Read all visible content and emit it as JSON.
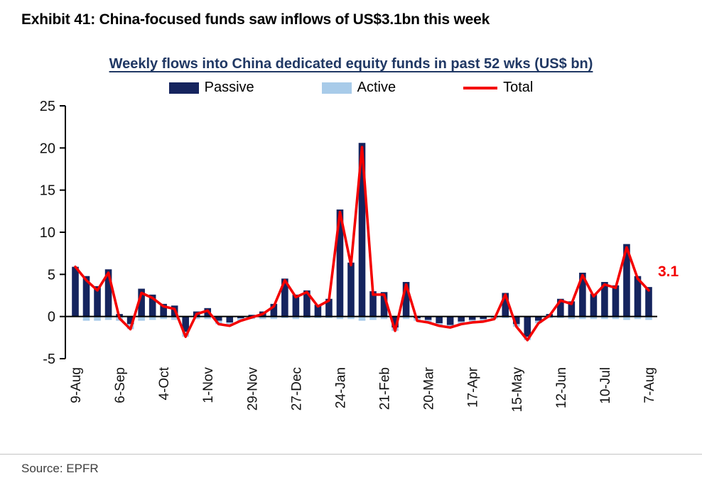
{
  "page": {
    "exhibit_title": "Exhibit 41: China-focused funds saw inflows of US$3.1bn this week",
    "source": "Source: EPFR"
  },
  "chart_data": {
    "type": "bar",
    "title": "Weekly flows into China dedicated equity funds in past 52 wks (US$ bn)",
    "xlabel": "",
    "ylabel": "",
    "ylim": [
      -5,
      25
    ],
    "yticks": [
      25,
      20,
      15,
      10,
      5,
      0,
      -5
    ],
    "grid": false,
    "legend_position": "top",
    "x_tick_labels": [
      "9-Aug",
      "6-Sep",
      "4-Oct",
      "1-Nov",
      "29-Nov",
      "27-Dec",
      "24-Jan",
      "21-Feb",
      "20-Mar",
      "17-Apr",
      "15-May",
      "12-Jun",
      "10-Jul",
      "7-Aug"
    ],
    "x_tick_interval": 4,
    "colors": {
      "passive": "#15245E",
      "active": "#A8CBE9",
      "total": "#F40000",
      "axis": "#000000",
      "title": "#203864"
    },
    "legend": [
      {
        "label": "Passive",
        "type": "bar",
        "color": "#15245E"
      },
      {
        "label": "Active",
        "type": "bar",
        "color": "#A8CBE9"
      },
      {
        "label": "Total",
        "type": "line",
        "color": "#F40000"
      }
    ],
    "series": [
      {
        "name": "Passive",
        "type": "bar",
        "color": "#15245E",
        "values": [
          5.9,
          4.8,
          3.6,
          5.6,
          0.3,
          -0.9,
          3.3,
          2.6,
          1.5,
          1.3,
          -1.8,
          0.6,
          1.0,
          -0.5,
          -0.7,
          -0.2,
          0.2,
          0.6,
          1.5,
          4.5,
          2.6,
          3.1,
          1.4,
          2.1,
          12.7,
          6.4,
          20.6,
          3.0,
          2.9,
          -1.3,
          4.1,
          -0.2,
          -0.4,
          -0.8,
          -1.0,
          -0.6,
          -0.4,
          -0.3,
          -0.1,
          2.8,
          -0.9,
          -2.4,
          -0.5,
          0.3,
          2.1,
          1.8,
          5.2,
          2.7,
          4.1,
          3.7,
          8.6,
          4.8,
          3.5
        ]
      },
      {
        "name": "Active",
        "type": "bar",
        "color": "#A8CBE9",
        "values": [
          0.0,
          -0.5,
          -0.5,
          -0.4,
          -0.5,
          -0.6,
          -0.5,
          -0.4,
          -0.3,
          -0.4,
          -0.6,
          -0.3,
          -0.3,
          -0.4,
          -0.4,
          -0.3,
          -0.3,
          -0.3,
          -0.3,
          -0.2,
          -0.3,
          -0.2,
          -0.2,
          -0.2,
          -0.3,
          -0.3,
          -0.5,
          -0.4,
          -0.3,
          -0.4,
          -0.3,
          -0.3,
          -0.3,
          -0.3,
          -0.3,
          -0.3,
          -0.3,
          -0.3,
          -0.2,
          -0.2,
          -0.3,
          -0.4,
          -0.3,
          -0.2,
          -0.2,
          -0.3,
          -0.3,
          -0.3,
          -0.3,
          -0.3,
          -0.4,
          -0.3,
          -0.4
        ]
      },
      {
        "name": "Total",
        "type": "line",
        "color": "#F40000",
        "values": [
          5.9,
          4.3,
          3.1,
          5.2,
          -0.2,
          -1.5,
          2.8,
          2.2,
          1.2,
          0.9,
          -2.4,
          0.3,
          0.7,
          -0.9,
          -1.1,
          -0.5,
          -0.1,
          0.3,
          1.2,
          4.3,
          2.3,
          2.9,
          1.2,
          1.9,
          12.4,
          6.1,
          20.1,
          2.6,
          2.6,
          -1.7,
          3.8,
          -0.5,
          -0.7,
          -1.1,
          -1.3,
          -0.9,
          -0.7,
          -0.6,
          -0.3,
          2.6,
          -1.2,
          -2.8,
          -0.8,
          0.1,
          1.9,
          1.5,
          4.9,
          2.4,
          3.8,
          3.4,
          8.2,
          4.5,
          3.1
        ]
      }
    ],
    "annotation": {
      "text": "3.1",
      "color": "#F40000"
    }
  }
}
